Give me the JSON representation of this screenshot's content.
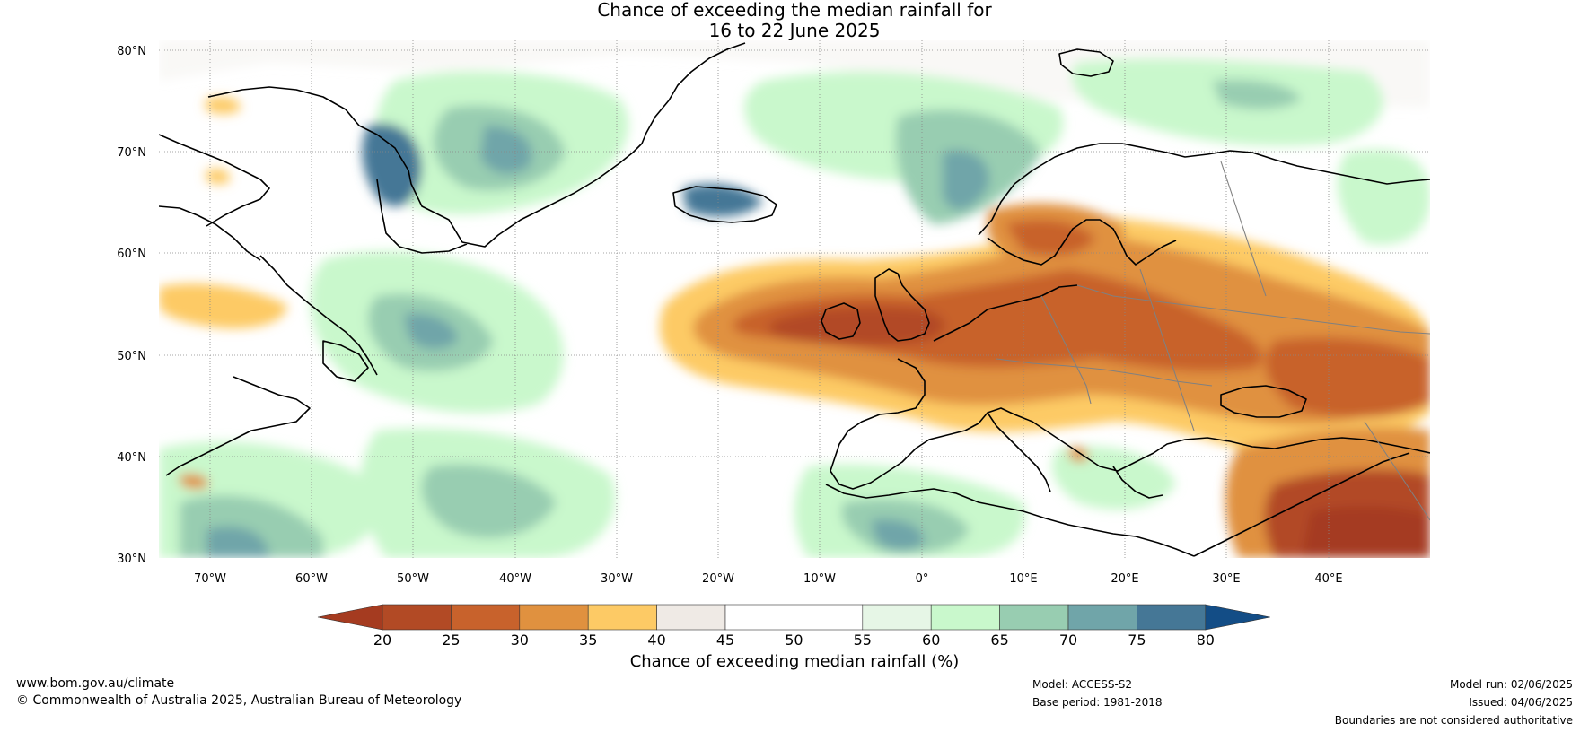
{
  "title": {
    "line1": "Chance of exceeding the median rainfall for",
    "line2": "16 to 22 June 2025"
  },
  "map": {
    "lat_labels": [
      "80°N",
      "70°N",
      "60°N",
      "50°N",
      "40°N",
      "30°N"
    ],
    "lon_labels": [
      "70°W",
      "60°W",
      "50°W",
      "40°W",
      "30°W",
      "20°W",
      "10°W",
      "0°",
      "10°E",
      "20°E",
      "30°E",
      "40°E"
    ],
    "extent": {
      "lon": [
        -75,
        50
      ],
      "lat": [
        30,
        81
      ]
    }
  },
  "colorbar": {
    "title": "Chance of exceeding median rainfall (%)",
    "ticks": [
      "20",
      "25",
      "30",
      "35",
      "40",
      "45",
      "50",
      "55",
      "60",
      "65",
      "70",
      "75",
      "80"
    ],
    "colors": [
      "#a53b20",
      "#b24a25",
      "#c8622c",
      "#e0913f",
      "#fdca65",
      "#efeae5",
      "#ffffff",
      "#ffffff",
      "#e6f6e6",
      "#c9f8cc",
      "#98cdb1",
      "#70a5a9",
      "#457796",
      "#134d86"
    ]
  },
  "footer": {
    "url": "www.bom.gov.au/climate",
    "copyright": "© Commonwealth of Australia 2025, Australian Bureau of Meteorology",
    "model": "Model: ACCESS-S2",
    "base_period": "Base period: 1981-2018",
    "model_run": "Model run: 02/06/2025",
    "issued": "Issued: 04/06/2025",
    "disclaimer": "Boundaries are not considered authoritative"
  }
}
